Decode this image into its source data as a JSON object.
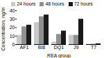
{
  "chart_data": {
    "type": "bar",
    "categories": [
      "AF1",
      "BI8",
      "DQ1",
      "J9",
      "T7"
    ],
    "series": [
      {
        "name": "24 hours",
        "color": "#c8c8c8",
        "values": [
          11,
          26,
          3,
          11,
          0.5
        ]
      },
      {
        "name": "48 hours",
        "color": "#909090",
        "values": [
          21,
          33,
          12,
          11,
          0.5
        ]
      },
      {
        "name": "72 hours",
        "color": "#1a1a1a",
        "values": [
          23,
          35,
          16,
          30,
          1.0
        ]
      }
    ],
    "xlabel": "REA group",
    "ylabel": "Concentration, ng/mL",
    "ylim": [
      0,
      40
    ],
    "yticks": [
      0,
      10,
      20,
      30,
      40
    ],
    "grid": false,
    "legend": "upper left"
  }
}
